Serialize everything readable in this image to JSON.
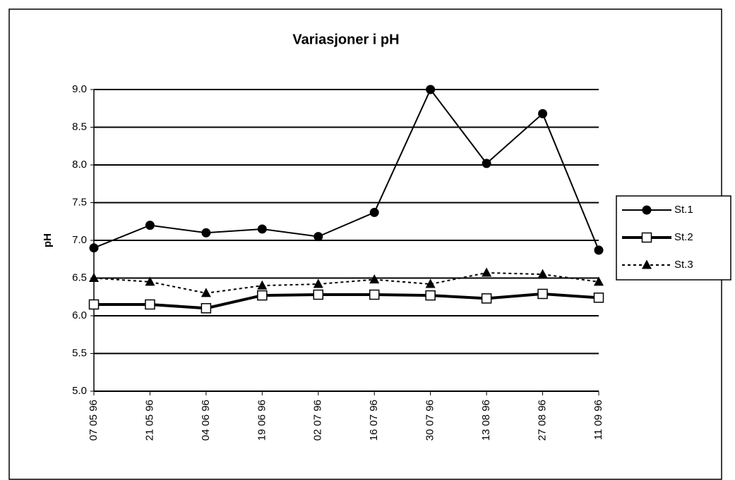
{
  "chart_data": {
    "type": "line",
    "title": "Variasjoner i pH",
    "y_label": "pH",
    "categories": [
      "07 05 96",
      "21 05 96",
      "04 06 96",
      "19 06 96",
      "02 07 96",
      "16 07 96",
      "30 07 96",
      "13 08 96",
      "27 08 96",
      "11 09 96"
    ],
    "series": [
      {
        "name": "St.1",
        "color": "#000000",
        "marker": "circle",
        "line_style": "solid",
        "values": [
          6.9,
          7.2,
          7.1,
          7.15,
          7.05,
          7.37,
          9.0,
          8.02,
          8.68,
          6.87
        ]
      },
      {
        "name": "St.2",
        "color": "#000000",
        "marker": "square",
        "line_style": "thick",
        "values": [
          6.15,
          6.15,
          6.1,
          6.27,
          6.28,
          6.28,
          6.27,
          6.23,
          6.29,
          6.24
        ]
      },
      {
        "name": "St.3",
        "color": "#000000",
        "marker": "triangle",
        "line_style": "dashed",
        "values": [
          6.5,
          6.45,
          6.3,
          6.4,
          6.42,
          6.48,
          6.42,
          6.57,
          6.55,
          6.45
        ]
      }
    ],
    "ylim": [
      5,
      9
    ],
    "yticks": [
      {
        "value": 5,
        "label": "5.0"
      },
      {
        "value": 5.5,
        "label": "5.5"
      },
      {
        "value": 6,
        "label": "6.0"
      },
      {
        "value": 6.5,
        "label": "6.5"
      },
      {
        "value": 7,
        "label": "7.0"
      },
      {
        "value": 7.5,
        "label": "7.5"
      },
      {
        "value": 8,
        "label": "8.0"
      },
      {
        "value": 8.5,
        "label": "8.5"
      },
      {
        "value": 9,
        "label": "9.0"
      }
    ],
    "grid": true,
    "legend": "right"
  }
}
